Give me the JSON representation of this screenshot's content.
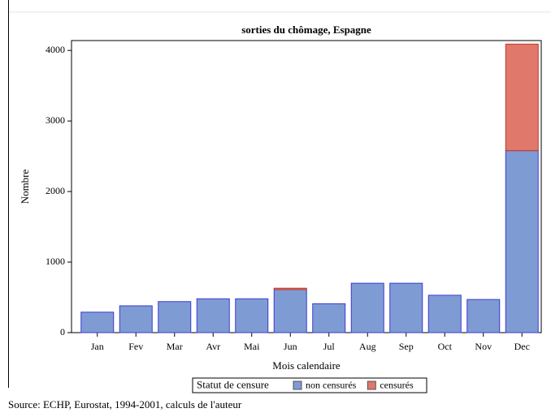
{
  "chart_data": {
    "type": "stacked_bar",
    "title": "sorties du chômage, Espagne",
    "x_label": "Mois calendaire",
    "y_label": "Nombre",
    "categories": [
      "Jan",
      "Fev",
      "Mar",
      "Avr",
      "Mai",
      "Jun",
      "Jul",
      "Aug",
      "Sep",
      "Oct",
      "Nov",
      "Dec"
    ],
    "series": [
      {
        "name": "non censurés",
        "color": "#7f9bd4",
        "values": [
          290,
          380,
          440,
          480,
          480,
          610,
          410,
          700,
          700,
          530,
          470,
          2580
        ]
      },
      {
        "name": "censurés",
        "color": "#e0786b",
        "values": [
          0,
          0,
          0,
          0,
          0,
          20,
          0,
          0,
          0,
          0,
          0,
          1510
        ]
      }
    ],
    "legend_title": "Statut de censure",
    "ylim": [
      0,
      4140
    ],
    "yticks": [
      0,
      1000,
      2000,
      3000,
      4000
    ],
    "source": "Source: ECHP, Eurostat, 1994-2001, calculs de l'auteur"
  }
}
